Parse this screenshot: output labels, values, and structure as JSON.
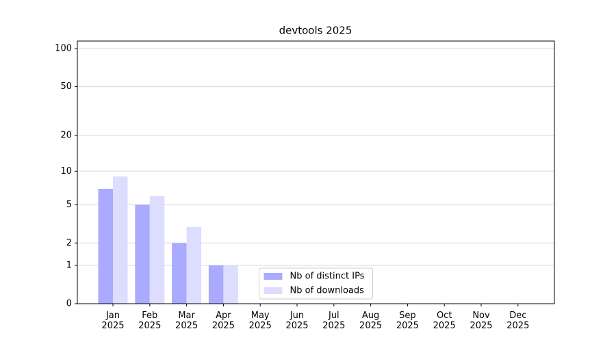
{
  "chart_data": {
    "type": "bar",
    "title": "devtools 2025",
    "y_scale": "log1p",
    "grid": true,
    "categories": [
      "Jan\n2025",
      "Feb\n2025",
      "Mar\n2025",
      "Apr\n2025",
      "May\n2025",
      "Jun\n2025",
      "Jul\n2025",
      "Aug\n2025",
      "Sep\n2025",
      "Oct\n2025",
      "Nov\n2025",
      "Dec\n2025"
    ],
    "series": [
      {
        "name": "Nb of distinct IPs",
        "color": "#aaaaff",
        "values": [
          7,
          5,
          2,
          1,
          0,
          0,
          0,
          0,
          0,
          0,
          0,
          0
        ]
      },
      {
        "name": "Nb of downloads",
        "color": "#ddddff",
        "values": [
          9,
          6,
          3,
          1,
          0,
          0,
          0,
          0,
          0,
          0,
          0,
          0
        ]
      }
    ],
    "ylim": [
      0,
      115
    ],
    "yticks": [
      0,
      1,
      2,
      5,
      10,
      20,
      50,
      100
    ],
    "legend": "lower center"
  }
}
